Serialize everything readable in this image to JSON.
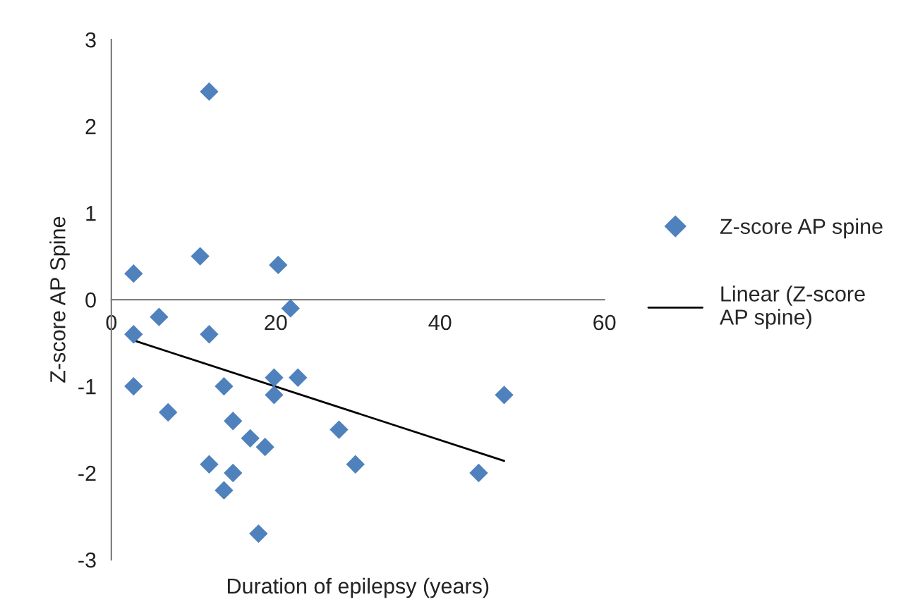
{
  "chart_data": {
    "type": "scatter",
    "xlabel": "Duration of epilepsy (years)",
    "ylabel": "Z-score AP Spine",
    "xlim": [
      0,
      60
    ],
    "xticks": [
      0,
      20,
      40,
      60
    ],
    "ylim": [
      -3,
      3
    ],
    "yticks": [
      -3,
      -2,
      -1,
      0,
      1,
      2,
      3
    ],
    "grid": false,
    "legend": "right",
    "series": [
      {
        "name": "Z-score AP spine",
        "marker": "diamond",
        "color": "#4f81bd",
        "x": [
          11.9,
          2.7,
          10.8,
          20.3,
          21.8,
          5.8,
          2.7,
          11.9,
          2.7,
          13.7,
          19.8,
          22.7,
          19.8,
          47.8,
          6.9,
          14.8,
          16.9,
          18.7,
          27.7,
          11.9,
          29.7,
          14.8,
          44.7,
          13.7,
          17.9
        ],
        "values": [
          2.4,
          0.3,
          0.5,
          0.4,
          -0.1,
          -0.2,
          -0.4,
          -0.4,
          -1.0,
          -1.0,
          -0.9,
          -0.9,
          -1.1,
          -1.1,
          -1.3,
          -1.4,
          -1.6,
          -1.7,
          -1.5,
          -1.9,
          -1.9,
          -2.0,
          -2.0,
          -2.2,
          -2.7
        ]
      },
      {
        "name": "Linear (Z-score AP spine)",
        "type": "line",
        "color": "#000000",
        "line_style": "solid",
        "x": [
          2.7,
          47.8
        ],
        "values": [
          -0.47,
          -1.86
        ]
      }
    ]
  }
}
